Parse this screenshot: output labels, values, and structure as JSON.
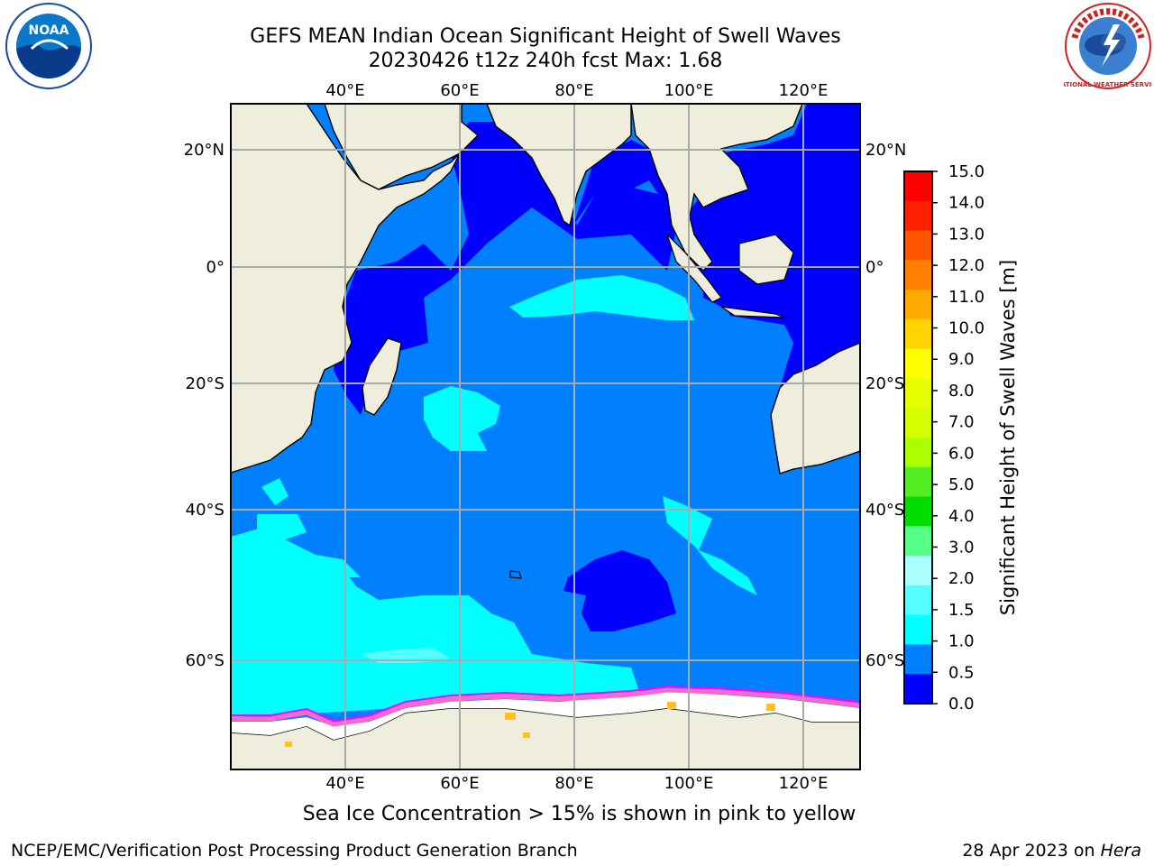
{
  "title": {
    "line1": "GEFS MEAN Indian Ocean Significant Height of Swell Waves",
    "line2": "20230426 t12z 240h fcst   Max: 1.68"
  },
  "map": {
    "lon_labels": [
      "40°E",
      "60°E",
      "80°E",
      "100°E",
      "120°E"
    ],
    "lat_labels": [
      "20°N",
      "0°",
      "20°S",
      "40°S",
      "60°S"
    ],
    "land_color": "#efeedc",
    "colors": {
      "band_0_05": "#0000ff",
      "band_05_1": "#0080ff",
      "band_1_15": "#00ffff",
      "band_15_2": "#55ffff",
      "sea_ice": "#ff66cc"
    }
  },
  "colorbar": {
    "label": "Significant Height of Swell Waves [m]",
    "ticks": [
      "15.0",
      "14.0",
      "13.0",
      "12.0",
      "11.0",
      "10.0",
      "9.0",
      "8.0",
      "7.0",
      "6.0",
      "5.0",
      "4.0",
      "3.0",
      "2.0",
      "1.5",
      "1.0",
      "0.5",
      "0.0"
    ],
    "colors_top_to_bottom": [
      "#ff0000",
      "#ff2000",
      "#ff5500",
      "#ff8000",
      "#ffaa00",
      "#ffd400",
      "#ffff00",
      "#e8ff00",
      "#d4ff00",
      "#aaff00",
      "#55ee22",
      "#00dd00",
      "#55ff88",
      "#aaffff",
      "#55ffff",
      "#00ffff",
      "#0080ff",
      "#0000ff"
    ]
  },
  "caption": "Sea Ice Concentration > 15% is shown in pink to yellow",
  "credit": "NCEP/EMC/Verification Post Processing Product Generation Branch",
  "date_prefix": "28 Apr 2023 on ",
  "machine": "Hera",
  "logos": {
    "noaa": "NOAA",
    "nws": "NATIONAL WEATHER SERVICE"
  }
}
